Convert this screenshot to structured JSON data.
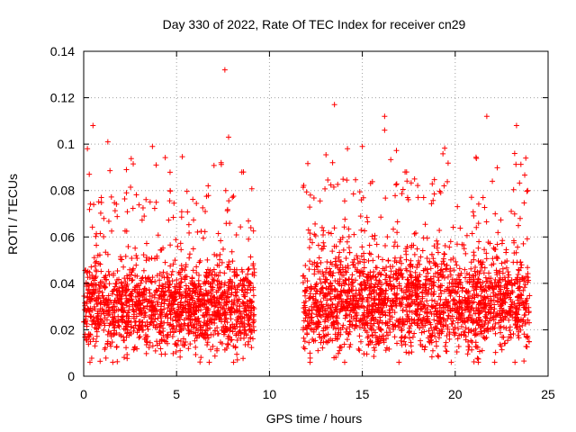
{
  "chart_data": {
    "type": "scatter",
    "title": "Day 330 of 2022, Rate Of TEC Index for receiver cn29",
    "xlabel": "GPS time / hours",
    "ylabel": "ROTI / TECUs",
    "xlim": [
      0,
      25
    ],
    "ylim": [
      0,
      0.14
    ],
    "xticks": [
      "0",
      "5",
      "10",
      "15",
      "20",
      "25"
    ],
    "yticks": [
      "0",
      "0.02",
      "0.04",
      "0.06",
      "0.08",
      "0.1",
      "0.12",
      "0.14"
    ],
    "grid": true,
    "legend": "none",
    "marker": "+",
    "color": "#ff0000",
    "segments": [
      {
        "x_start": 0,
        "x_end": 9.2,
        "typical_min": 0.01,
        "typical_max": 0.05
      },
      {
        "x_start": 11.8,
        "x_end": 24,
        "typical_min": 0.01,
        "typical_max": 0.055
      }
    ],
    "notable_points": [
      {
        "x": 7.6,
        "y": 0.132
      },
      {
        "x": 13.5,
        "y": 0.117
      },
      {
        "x": 16.2,
        "y": 0.112
      },
      {
        "x": 21.7,
        "y": 0.112
      },
      {
        "x": 16.2,
        "y": 0.106
      },
      {
        "x": 0.5,
        "y": 0.108
      },
      {
        "x": 23.3,
        "y": 0.108
      },
      {
        "x": 7.8,
        "y": 0.103
      },
      {
        "x": 1.3,
        "y": 0.101
      },
      {
        "x": 3.7,
        "y": 0.099
      },
      {
        "x": 0.2,
        "y": 0.098
      },
      {
        "x": 14.2,
        "y": 0.098
      },
      {
        "x": 15.0,
        "y": 0.099
      },
      {
        "x": 23.2,
        "y": 0.096
      },
      {
        "x": 7.4,
        "y": 0.092
      },
      {
        "x": 3.9,
        "y": 0.091
      },
      {
        "x": 23.8,
        "y": 0.094
      },
      {
        "x": 13.4,
        "y": 0.092
      },
      {
        "x": 8.6,
        "y": 0.088
      },
      {
        "x": 0.3,
        "y": 0.087
      },
      {
        "x": 17.3,
        "y": 0.088
      },
      {
        "x": 22.0,
        "y": 0.084
      },
      {
        "x": 6.7,
        "y": 0.082
      },
      {
        "x": 19.4,
        "y": 0.082
      },
      {
        "x": 2.3,
        "y": 0.079
      },
      {
        "x": 21.5,
        "y": 0.077
      },
      {
        "x": 23.9,
        "y": 0.08
      },
      {
        "x": 18.3,
        "y": 0.077
      },
      {
        "x": 9.0,
        "y": 0.064
      },
      {
        "x": 12.1,
        "y": 0.063
      }
    ]
  }
}
